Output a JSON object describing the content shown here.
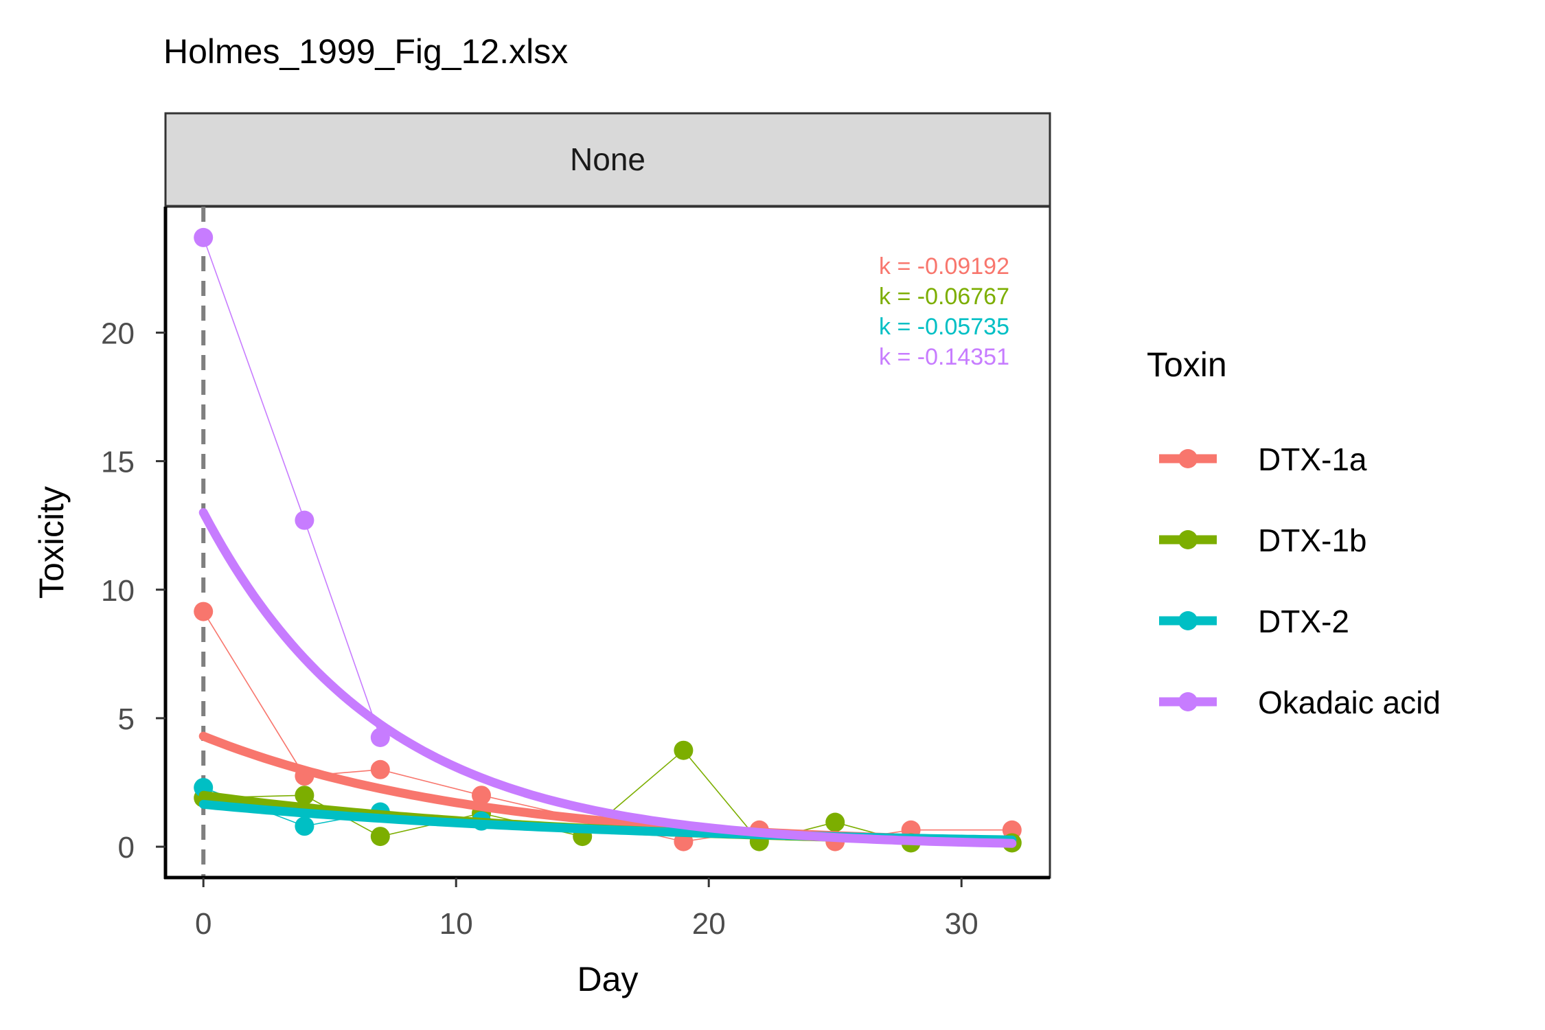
{
  "chart_data": {
    "type": "line",
    "title": "Holmes_1999_Fig_12.xlsx",
    "panel_label": "None",
    "xlabel": "Day",
    "ylabel": "Toxicity",
    "xlim": [
      -1.5,
      33.5
    ],
    "ylim": [
      -1.2,
      24.9
    ],
    "x_ticks": [
      0,
      10,
      20,
      30
    ],
    "y_ticks": [
      0,
      5,
      10,
      15,
      20
    ],
    "vline_x": 0,
    "grid": false,
    "legend": {
      "title": "Toxin",
      "position": "right",
      "entries": [
        "DTX-1a",
        "DTX-1b",
        "DTX-2",
        "Okadaic acid"
      ]
    },
    "series": [
      {
        "name": "DTX-1a",
        "color": "#F8766D",
        "k_label": "k = -0.09192",
        "x": [
          0,
          4,
          7,
          11,
          19,
          22,
          25,
          28,
          32
        ],
        "y": [
          9.15,
          2.75,
          3.0,
          2.0,
          0.2,
          0.65,
          0.2,
          0.65,
          0.65
        ],
        "fit": {
          "a": 4.3,
          "k": -0.09192
        }
      },
      {
        "name": "DTX-1b",
        "color": "#7CAE00",
        "k_label": "k = -0.06767",
        "x": [
          0,
          4,
          7,
          11,
          15,
          19,
          22,
          25,
          28,
          32
        ],
        "y": [
          1.9,
          2.0,
          0.4,
          1.3,
          0.4,
          3.75,
          0.2,
          0.95,
          0.15,
          0.15
        ],
        "fit": {
          "a": 2.0,
          "k": -0.06767
        }
      },
      {
        "name": "DTX-2",
        "color": "#00BFC4",
        "k_label": "k = -0.05735",
        "x": [
          0,
          4,
          7,
          11
        ],
        "y": [
          2.3,
          0.8,
          1.35,
          1.0
        ],
        "fit": {
          "a": 1.65,
          "k": -0.05735
        }
      },
      {
        "name": "Okadaic acid",
        "color": "#C77CFF",
        "k_label": "k = -0.14351",
        "x": [
          0,
          4,
          7
        ],
        "y": [
          23.7,
          12.7,
          4.25
        ],
        "fit": {
          "a": 13.0,
          "k": -0.14351
        }
      }
    ]
  }
}
